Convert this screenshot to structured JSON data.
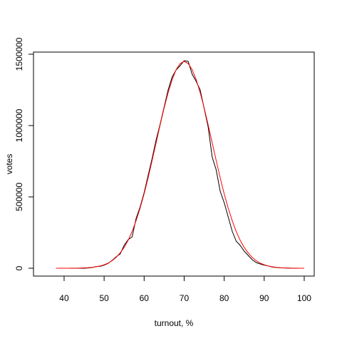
{
  "chart_data": {
    "type": "line",
    "x_label": "turnout, %",
    "y_label": "votes",
    "x": [
      38,
      39,
      40,
      41,
      42,
      43,
      44,
      45,
      46,
      47,
      48,
      49,
      50,
      51,
      52,
      53,
      54,
      55,
      56,
      57,
      58,
      59,
      60,
      61,
      62,
      63,
      64,
      65,
      66,
      67,
      68,
      69,
      70,
      71,
      72,
      73,
      74,
      75,
      76,
      77,
      78,
      79,
      80,
      81,
      82,
      83,
      84,
      85,
      86,
      87,
      88,
      89,
      90,
      91,
      92,
      93,
      94,
      95,
      96,
      97,
      98,
      99,
      100
    ],
    "series": [
      {
        "color": "#000000",
        "values": [
          0,
          0,
          0,
          0,
          0,
          0,
          0,
          0,
          2000,
          5000,
          12000,
          14000,
          22000,
          34000,
          55000,
          80000,
          100000,
          160000,
          200000,
          220000,
          350000,
          430000,
          530000,
          650000,
          770000,
          900000,
          1010000,
          1130000,
          1250000,
          1340000,
          1390000,
          1420000,
          1455000,
          1450000,
          1360000,
          1310000,
          1250000,
          1120000,
          990000,
          780000,
          690000,
          540000,
          460000,
          360000,
          260000,
          190000,
          160000,
          120000,
          90000,
          60000,
          40000,
          30000,
          22000,
          16000,
          9000,
          5000,
          3000,
          2000,
          1000,
          0,
          0,
          0,
          0
        ]
      },
      {
        "color": "#ff0000",
        "values": [
          40,
          80,
          150,
          270,
          490,
          860,
          1450,
          2500,
          4000,
          6500,
          10500,
          16000,
          24500,
          36000,
          53000,
          76000,
          107000,
          146000,
          196000,
          258000,
          334000,
          422000,
          522000,
          634000,
          756000,
          880000,
          1005000,
          1124000,
          1231000,
          1322000,
          1392000,
          1435000,
          1450000,
          1435000,
          1392000,
          1322000,
          1231000,
          1124000,
          1005000,
          880000,
          756000,
          634000,
          522000,
          422000,
          334000,
          258000,
          196000,
          146000,
          107000,
          76000,
          53000,
          36000,
          24500,
          16000,
          10500,
          6500,
          4000,
          2500,
          1450,
          860,
          490,
          270,
          150
        ]
      }
    ],
    "xlim": [
      32.35,
      102.5
    ],
    "ylim": [
      -55000,
      1515000
    ],
    "xticks": [
      40,
      50,
      60,
      70,
      80,
      90,
      100
    ],
    "yticks": [
      0,
      500000,
      1000000,
      1500000
    ]
  }
}
